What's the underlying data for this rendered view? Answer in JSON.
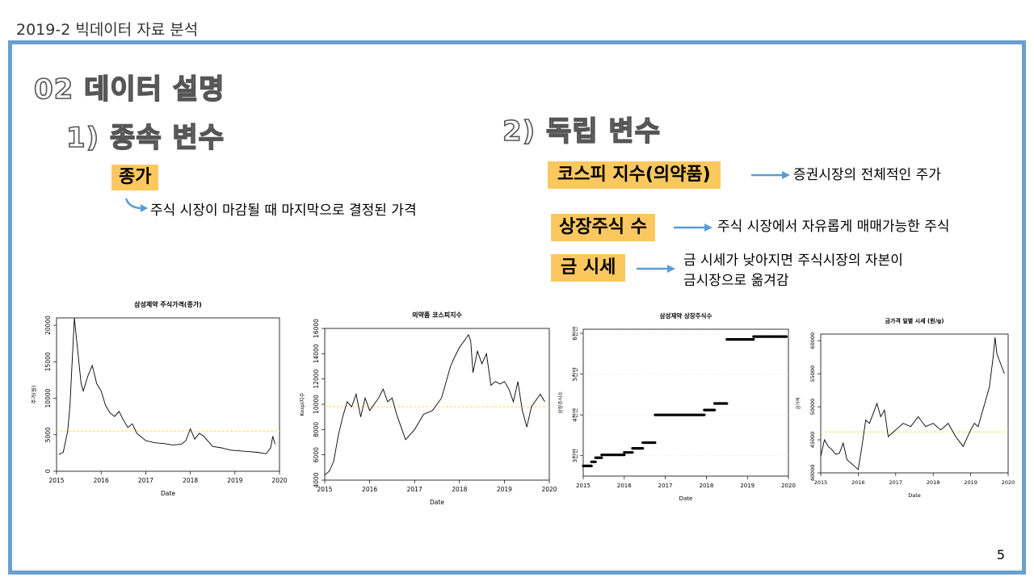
{
  "course_title": "2019-2 빅데이터 자료 분석",
  "section_title": "02  데이터 설명",
  "dependent": {
    "heading": "1) 종속 변수",
    "tag": "종가",
    "desc": "주식 시장이 마감될 때 마지막으로 결정된 가격"
  },
  "independent": {
    "heading": "2) 독립 변수",
    "items": [
      {
        "tag": "코스피 지수(의약품)",
        "desc": "증권시장의 전체적인 주가"
      },
      {
        "tag": "상장주식 수",
        "desc": "주식 시장에서 자유롭게 매매가능한 주식"
      },
      {
        "tag": "금 시세",
        "desc_line1": "금 시세가 낮아지면 주식시장의 자본이",
        "desc_line2": "금시장으로 옮겨감"
      }
    ]
  },
  "page_number": "5",
  "colors": {
    "tag": "#fbc75f",
    "frame": "#6b9fcf",
    "arrow": "#5b9bd5",
    "mean_line": "#f4e04d"
  },
  "chart_data": [
    {
      "type": "line",
      "title": "삼성제약 주식가격(종가)",
      "xlabel": "Date",
      "ylabel": "주가(원)",
      "xlim": [
        2015,
        2020
      ],
      "ylim": [
        0,
        21000
      ],
      "yticks": [
        0,
        5000,
        10000,
        15000,
        20000
      ],
      "xticks": [
        "2015",
        "2016",
        "2017",
        "2018",
        "2019",
        "2020"
      ],
      "hline": 5500,
      "series": [
        {
          "x": [
            2015.05,
            2015.15,
            2015.25,
            2015.3,
            2015.35,
            2015.4,
            2015.45,
            2015.5,
            2015.55,
            2015.6,
            2015.7,
            2015.8,
            2015.9,
            2016.0,
            2016.1,
            2016.2,
            2016.3,
            2016.4,
            2016.5,
            2016.6,
            2016.7,
            2016.8,
            2017.0,
            2017.2,
            2017.4,
            2017.6,
            2017.8,
            2017.9,
            2018.0,
            2018.1,
            2018.2,
            2018.3,
            2018.5,
            2018.7,
            2018.9,
            2019.1,
            2019.3,
            2019.5,
            2019.7,
            2019.8,
            2019.85,
            2019.9
          ],
          "y": [
            2300,
            2600,
            5500,
            9000,
            15000,
            21000,
            18000,
            15000,
            12000,
            11000,
            13000,
            14500,
            12000,
            11000,
            9000,
            8000,
            7500,
            8200,
            7000,
            6000,
            6500,
            5200,
            4200,
            3900,
            3800,
            3600,
            3700,
            4200,
            5800,
            4400,
            5200,
            4800,
            3400,
            3200,
            2900,
            2800,
            2700,
            2600,
            2400,
            3200,
            4800,
            3700
          ]
        }
      ]
    },
    {
      "type": "line",
      "title": "의약품 코스피지수",
      "xlabel": "Date",
      "ylabel": "Kospi지수",
      "xlim": [
        2015,
        2020
      ],
      "ylim": [
        4000,
        16000
      ],
      "yticks": [
        4000,
        6000,
        8000,
        10000,
        12000,
        14000,
        16000
      ],
      "xticks": [
        "2015",
        "2016",
        "2017",
        "2018",
        "2019",
        "2020"
      ],
      "hline": 9800,
      "series": [
        {
          "x": [
            2015.0,
            2015.1,
            2015.2,
            2015.3,
            2015.4,
            2015.5,
            2015.6,
            2015.7,
            2015.8,
            2015.9,
            2016.0,
            2016.1,
            2016.2,
            2016.3,
            2016.4,
            2016.5,
            2016.6,
            2016.7,
            2016.8,
            2016.9,
            2017.0,
            2017.2,
            2017.4,
            2017.6,
            2017.8,
            2017.9,
            2018.0,
            2018.1,
            2018.2,
            2018.25,
            2018.3,
            2018.4,
            2018.5,
            2018.6,
            2018.7,
            2018.8,
            2018.9,
            2019.0,
            2019.1,
            2019.2,
            2019.3,
            2019.4,
            2019.5,
            2019.6,
            2019.7,
            2019.8,
            2019.9
          ],
          "y": [
            4400,
            4700,
            5500,
            7500,
            9000,
            10200,
            9800,
            10800,
            9000,
            10500,
            9500,
            10000,
            10500,
            11200,
            10200,
            10500,
            9200,
            8200,
            7200,
            7600,
            8000,
            9200,
            9500,
            10500,
            13000,
            13800,
            14500,
            15000,
            15500,
            15000,
            12500,
            14200,
            13200,
            14000,
            11500,
            11800,
            11600,
            11800,
            11200,
            10200,
            11800,
            9500,
            8200,
            9800,
            10300,
            10800,
            10200
          ]
        }
      ]
    },
    {
      "type": "scatter",
      "title": "삼성제약 상장주식수",
      "xlabel": "Date",
      "ylabel": "상장주식수",
      "xlim": [
        2015,
        2020
      ],
      "ylim": [
        25,
        61
      ],
      "yticks": [
        "3천만",
        "4천만",
        "5천만",
        "6천만"
      ],
      "yticks_values": [
        30,
        40,
        50,
        60
      ],
      "xticks": [
        "2015",
        "2016",
        "2017",
        "2018",
        "2019",
        "2020"
      ],
      "steps": [
        {
          "x": [
            2015.0,
            2015.2
          ],
          "y": 27.5
        },
        {
          "x": [
            2015.2,
            2015.3
          ],
          "y": 28.5
        },
        {
          "x": [
            2015.3,
            2015.45
          ],
          "y": 29.5
        },
        {
          "x": [
            2015.45,
            2016.0
          ],
          "y": 30.2
        },
        {
          "x": [
            2016.0,
            2016.2
          ],
          "y": 30.8
        },
        {
          "x": [
            2016.2,
            2016.45
          ],
          "y": 31.8
        },
        {
          "x": [
            2016.45,
            2016.75
          ],
          "y": 33.2
        },
        {
          "x": [
            2016.75,
            2017.95
          ],
          "y": 40.0
        },
        {
          "x": [
            2017.95,
            2018.2
          ],
          "y": 41.2
        },
        {
          "x": [
            2018.2,
            2018.5
          ],
          "y": 42.8
        },
        {
          "x": [
            2018.5,
            2019.15
          ],
          "y": 58.5
        },
        {
          "x": [
            2019.15,
            2019.95
          ],
          "y": 59.2
        }
      ]
    },
    {
      "type": "line",
      "title": "금가격 일별 시세 (원/g)",
      "xlabel": "Date",
      "ylabel": "금가격",
      "xlim": [
        2015,
        2020
      ],
      "ylim": [
        40000,
        61000
      ],
      "yticks": [
        40000,
        45000,
        50000,
        55000,
        60000
      ],
      "xticks": [
        "2015",
        "2016",
        "2017",
        "2018",
        "2019",
        "2020"
      ],
      "hline": 46200,
      "series": [
        {
          "x": [
            2015.0,
            2015.1,
            2015.2,
            2015.3,
            2015.4,
            2015.5,
            2015.6,
            2015.7,
            2015.8,
            2015.9,
            2016.0,
            2016.1,
            2016.2,
            2016.3,
            2016.4,
            2016.5,
            2016.6,
            2016.7,
            2016.8,
            2016.9,
            2017.0,
            2017.2,
            2017.4,
            2017.6,
            2017.8,
            2018.0,
            2018.2,
            2018.4,
            2018.6,
            2018.8,
            2019.0,
            2019.1,
            2019.2,
            2019.3,
            2019.4,
            2019.5,
            2019.6,
            2019.65,
            2019.7,
            2019.8,
            2019.9
          ],
          "y": [
            42500,
            45000,
            44000,
            43500,
            42800,
            43000,
            44500,
            42000,
            41500,
            41000,
            40500,
            44000,
            48000,
            47500,
            49000,
            50500,
            48500,
            49500,
            45500,
            46000,
            46500,
            47500,
            47000,
            48500,
            47000,
            47500,
            46500,
            47500,
            45500,
            44000,
            46500,
            47500,
            47000,
            49000,
            51000,
            53000,
            57500,
            60500,
            58000,
            56500,
            55000
          ]
        }
      ]
    }
  ]
}
